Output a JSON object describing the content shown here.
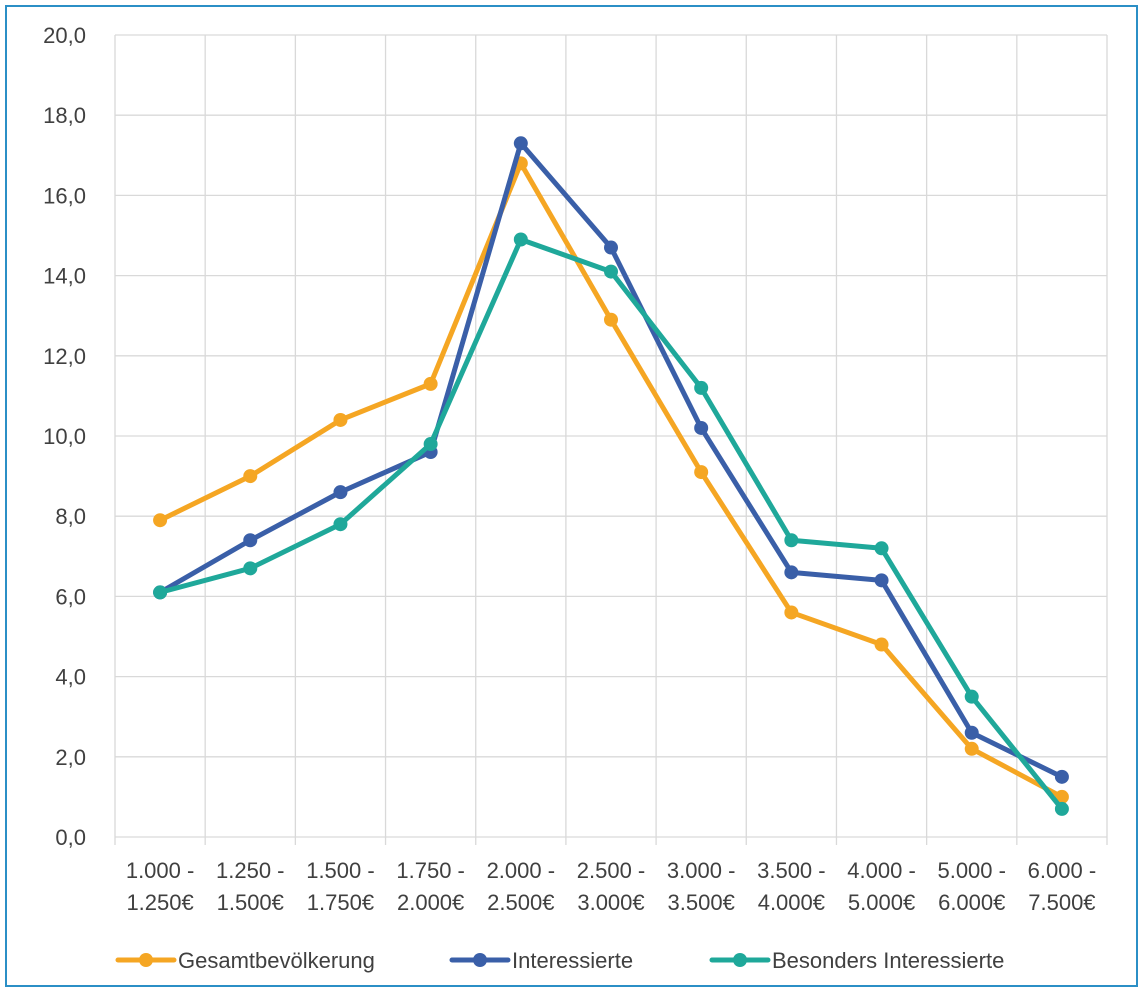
{
  "chart_data": {
    "type": "line",
    "title": "",
    "xlabel": "",
    "ylabel": "",
    "ylim": [
      0,
      20
    ],
    "ytick_step": 2,
    "y_tick_labels": [
      "0,0",
      "2,0",
      "4,0",
      "6,0",
      "8,0",
      "10,0",
      "12,0",
      "14,0",
      "16,0",
      "18,0",
      "20,0"
    ],
    "grid": true,
    "legend_position": "bottom",
    "categories": [
      [
        "1.000 -",
        "1.250€"
      ],
      [
        "1.250 -",
        "1.500€"
      ],
      [
        "1.500 -",
        "1.750€"
      ],
      [
        "1.750 -",
        "2.000€"
      ],
      [
        "2.000 -",
        "2.500€"
      ],
      [
        "2.500 -",
        "3.000€"
      ],
      [
        "3.000 -",
        "3.500€"
      ],
      [
        "3.500 -",
        "4.000€"
      ],
      [
        "4.000 -",
        "5.000€"
      ],
      [
        "5.000 -",
        "6.000€"
      ],
      [
        "6.000 -",
        "7.500€"
      ]
    ],
    "series": [
      {
        "name": "Gesamtbevölkerung",
        "color": "#f5a623",
        "values": [
          7.9,
          9.0,
          10.4,
          11.3,
          16.8,
          12.9,
          9.1,
          5.6,
          4.8,
          2.2,
          1.0
        ]
      },
      {
        "name": "Interessierte",
        "color": "#3a5fa8",
        "values": [
          6.1,
          7.4,
          8.6,
          9.6,
          17.3,
          14.7,
          10.2,
          6.6,
          6.4,
          2.6,
          1.5
        ]
      },
      {
        "name": "Besonders Interessierte",
        "color": "#1fa89a",
        "values": [
          6.1,
          6.7,
          7.8,
          9.8,
          14.9,
          14.1,
          11.2,
          7.4,
          7.2,
          3.5,
          0.7
        ]
      }
    ]
  }
}
